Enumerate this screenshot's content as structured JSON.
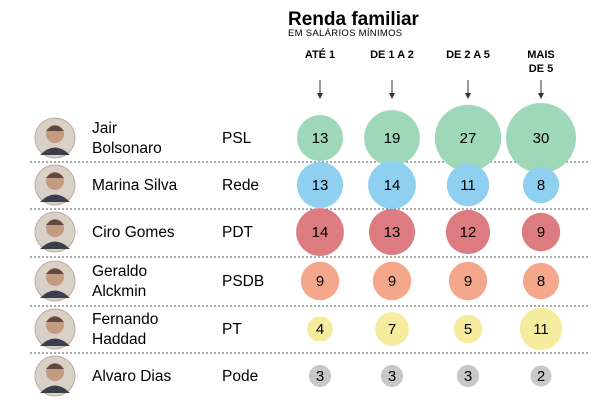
{
  "chart_data": {
    "type": "bubble-table",
    "title": "Renda familiar",
    "subtitle": "EM SALÁRIOS MÍNIMOS",
    "columns": [
      "ATÉ 1",
      "DE 1 A 2",
      "DE 2 A 5",
      "MAIS DE 5"
    ],
    "rows": [
      {
        "name": "Jair Bolsonaro",
        "party": "PSL",
        "color": "#9fd8b9",
        "values": [
          13,
          19,
          27,
          30
        ]
      },
      {
        "name": "Marina Silva",
        "party": "Rede",
        "color": "#8fcff0",
        "values": [
          13,
          14,
          11,
          8
        ]
      },
      {
        "name": "Ciro Gomes",
        "party": "PDT",
        "color": "#dc7b80",
        "values": [
          14,
          13,
          12,
          9
        ]
      },
      {
        "name": "Geraldo Alckmin",
        "party": "PSDB",
        "color": "#f5a78c",
        "values": [
          9,
          9,
          9,
          8
        ]
      },
      {
        "name": "Fernando Haddad",
        "party": "PT",
        "color": "#f5ec9e",
        "values": [
          4,
          7,
          5,
          11
        ]
      },
      {
        "name": "Alvaro Dias",
        "party": "Pode",
        "color": "#c8c8c8",
        "values": [
          3,
          3,
          3,
          2
        ]
      }
    ]
  }
}
